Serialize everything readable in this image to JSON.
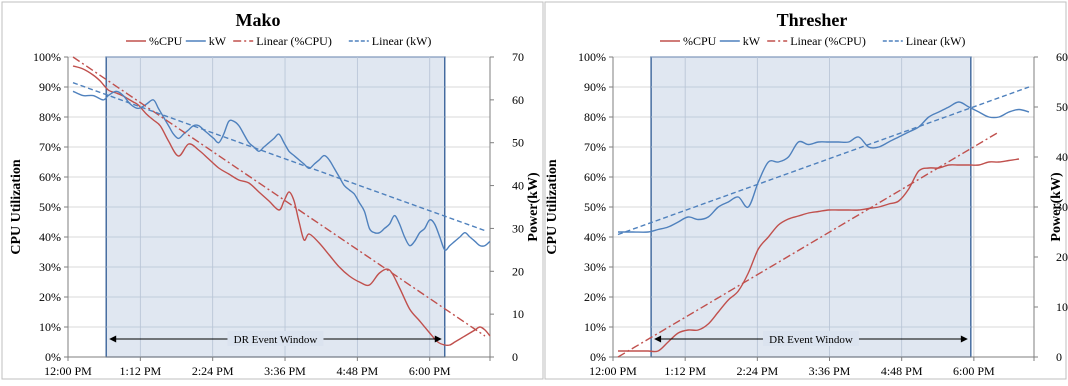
{
  "chart_data": [
    {
      "type": "line",
      "title": "Mako",
      "xlabel": "",
      "ylabel": "CPU Utilization",
      "y2label": "Power(kW)",
      "ylim": [
        0,
        100
      ],
      "y2lim": [
        0,
        70
      ],
      "xlim": [
        0,
        420
      ],
      "x_ticks": [
        0,
        72,
        144,
        216,
        288,
        360,
        420
      ],
      "x_tick_labels": [
        "12:00 PM",
        "1:12 PM",
        "2:24 PM",
        "3:36 PM",
        "4:48 PM",
        "6:00 PM",
        ""
      ],
      "y_ticks": [
        0,
        10,
        20,
        30,
        40,
        50,
        60,
        70,
        80,
        90,
        100
      ],
      "y_tick_labels": [
        "0%",
        "10%",
        "20%",
        "30%",
        "40%",
        "50%",
        "60%",
        "70%",
        "80%",
        "90%",
        "100%"
      ],
      "y2_ticks": [
        0,
        10,
        20,
        30,
        40,
        50,
        60,
        70
      ],
      "y2_tick_labels": [
        "0",
        "10",
        "20",
        "30",
        "40",
        "50",
        "60",
        "70"
      ],
      "legend": [
        "%CPU",
        "kW",
        "Linear (%CPU)",
        "Linear (kW)"
      ],
      "legend_position": "top",
      "event_window": {
        "start": 38,
        "end": 375,
        "label": "DR Event Window",
        "fill": "#dbe3ef",
        "edge": "#1f4e8c"
      },
      "series": [
        {
          "name": "%CPU",
          "axis": "left",
          "color": "#c0504d",
          "style": "solid",
          "x": [
            5,
            15,
            25,
            32,
            40,
            48,
            55,
            60,
            65,
            70,
            78,
            85,
            92,
            100,
            110,
            120,
            130,
            140,
            150,
            160,
            170,
            180,
            190,
            200,
            210,
            215,
            220,
            225,
            230,
            235,
            240,
            250,
            260,
            270,
            280,
            290,
            300,
            310,
            320,
            330,
            340,
            350,
            360,
            368,
            375,
            380,
            385,
            390,
            395,
            400,
            405,
            410,
            415,
            420
          ],
          "y": [
            97,
            96,
            94,
            92,
            89,
            88,
            87,
            86,
            85,
            84,
            81,
            79,
            77,
            72,
            67,
            71,
            69,
            66,
            63,
            61,
            59,
            58,
            55,
            52,
            49,
            52,
            55,
            52,
            45,
            39,
            41,
            38,
            34,
            30,
            27,
            25,
            24,
            28,
            29,
            23,
            16,
            12,
            8,
            5,
            4,
            4,
            5,
            6,
            7,
            8,
            9,
            10,
            9,
            7
          ]
        },
        {
          "name": "kW",
          "axis": "right",
          "color": "#4f81bd",
          "style": "solid",
          "x": [
            5,
            15,
            25,
            35,
            40,
            48,
            55,
            62,
            70,
            78,
            85,
            90,
            95,
            100,
            105,
            110,
            115,
            120,
            125,
            130,
            135,
            140,
            145,
            150,
            155,
            160,
            165,
            170,
            175,
            180,
            185,
            190,
            195,
            200,
            205,
            210,
            215,
            220,
            225,
            230,
            235,
            240,
            245,
            250,
            255,
            260,
            265,
            270,
            275,
            280,
            285,
            290,
            295,
            300,
            305,
            310,
            315,
            320,
            325,
            330,
            335,
            340,
            345,
            350,
            355,
            360,
            365,
            370,
            375,
            380,
            385,
            390,
            395,
            400,
            405,
            410,
            415,
            420
          ],
          "y": [
            62,
            61,
            61,
            60,
            61,
            62,
            61,
            59,
            58,
            59,
            60,
            58,
            56,
            54,
            52,
            51,
            52,
            53,
            54,
            54,
            53,
            52,
            51,
            50,
            52,
            55,
            55,
            54,
            52,
            50,
            49,
            48,
            49,
            50,
            51,
            52,
            50,
            48,
            47,
            46,
            45,
            44,
            45,
            46,
            47,
            46,
            44,
            42,
            40,
            39,
            38,
            36,
            34,
            30,
            29,
            29,
            30,
            31,
            33,
            31,
            28,
            26,
            27,
            29,
            30,
            32,
            31,
            28,
            25,
            26,
            27,
            28,
            29,
            28,
            27,
            26,
            26,
            27
          ]
        },
        {
          "name": "Linear (%CPU)",
          "axis": "left",
          "color": "#c0504d",
          "style": "dashdot",
          "x": [
            5,
            415
          ],
          "y": [
            100,
            7
          ]
        },
        {
          "name": "Linear (kW)",
          "axis": "right",
          "color": "#4f81bd",
          "style": "dashed",
          "x": [
            5,
            415
          ],
          "y": [
            64,
            29.5
          ]
        }
      ]
    },
    {
      "type": "line",
      "title": "Thresher",
      "xlabel": "",
      "ylabel": "CPU Utilization",
      "y2label": "Power(kW)",
      "ylim": [
        0,
        100
      ],
      "y2lim": [
        0,
        60
      ],
      "xlim": [
        0,
        420
      ],
      "x_ticks": [
        0,
        72,
        144,
        216,
        288,
        360,
        420
      ],
      "x_tick_labels": [
        "12:00 PM",
        "1:12 PM",
        "2:24 PM",
        "3:36 PM",
        "4:48 PM",
        "6:00 PM",
        ""
      ],
      "y_ticks": [
        0,
        10,
        20,
        30,
        40,
        50,
        60,
        70,
        80,
        90,
        100
      ],
      "y_tick_labels": [
        "0%",
        "10%",
        "20%",
        "30%",
        "40%",
        "50%",
        "60%",
        "70%",
        "80%",
        "90%",
        "100%"
      ],
      "y2_ticks": [
        0,
        10,
        20,
        30,
        40,
        50,
        60
      ],
      "y2_tick_labels": [
        "0",
        "10",
        "20",
        "30",
        "40",
        "50",
        "60"
      ],
      "legend": [
        "%CPU",
        "kW",
        "Linear (%CPU)",
        "Linear (kW)"
      ],
      "legend_position": "top",
      "event_window": {
        "start": 38,
        "end": 357,
        "label": "DR Event Window",
        "fill": "#dbe3ef",
        "edge": "#1f4e8c"
      },
      "series": [
        {
          "name": "%CPU",
          "axis": "left",
          "color": "#c0504d",
          "style": "solid",
          "x": [
            5,
            20,
            35,
            45,
            55,
            65,
            75,
            85,
            95,
            105,
            115,
            125,
            135,
            145,
            155,
            165,
            175,
            185,
            195,
            205,
            215,
            225,
            235,
            245,
            255,
            265,
            275,
            285,
            295,
            305,
            315,
            325,
            335,
            345,
            355,
            365,
            375,
            385,
            395,
            405
          ],
          "y": [
            2,
            2,
            2,
            2,
            5,
            8,
            9,
            9,
            11,
            15,
            19,
            22,
            28,
            36,
            40,
            44,
            46,
            47,
            48,
            48.5,
            49,
            49,
            49,
            49,
            49.5,
            50,
            51,
            52,
            56,
            62,
            63,
            63,
            64,
            64,
            64,
            64,
            65,
            65,
            65.5,
            66
          ]
        },
        {
          "name": "kW",
          "axis": "right",
          "color": "#4f81bd",
          "style": "solid",
          "x": [
            5,
            20,
            35,
            45,
            55,
            65,
            75,
            85,
            95,
            105,
            115,
            125,
            135,
            145,
            155,
            165,
            175,
            185,
            195,
            205,
            215,
            225,
            235,
            245,
            255,
            265,
            275,
            285,
            295,
            305,
            315,
            325,
            335,
            345,
            355,
            365,
            375,
            385,
            395,
            405,
            415
          ],
          "y": [
            25,
            25,
            25,
            25.5,
            26,
            27,
            28,
            27.5,
            28,
            30,
            31,
            32,
            30,
            35,
            39,
            39,
            40,
            43,
            42.5,
            43,
            43,
            43,
            43,
            44,
            42,
            42,
            43,
            44,
            45,
            46,
            48,
            49,
            50,
            51,
            50,
            49,
            48,
            48,
            49,
            49.5,
            49
          ]
        },
        {
          "name": "Linear (%CPU)",
          "axis": "left",
          "color": "#c0504d",
          "style": "dashdot",
          "x": [
            5,
            385
          ],
          "y": [
            0,
            75
          ]
        },
        {
          "name": "Linear (kW)",
          "axis": "right",
          "color": "#4f81bd",
          "style": "dashed",
          "x": [
            5,
            415
          ],
          "y": [
            24.5,
            54
          ]
        }
      ]
    }
  ]
}
